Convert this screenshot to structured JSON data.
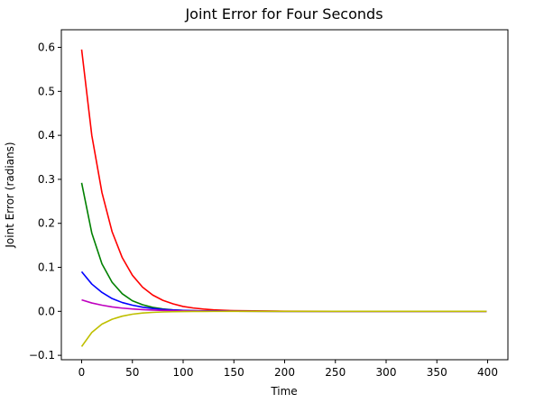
{
  "chart_data": {
    "type": "line",
    "title": "Joint Error for Four Seconds",
    "xlabel": "Time",
    "ylabel": "Joint Error (radians)",
    "xlim": [
      -20,
      420
    ],
    "ylim": [
      -0.11,
      0.64
    ],
    "xticks": [
      0,
      50,
      100,
      150,
      200,
      250,
      300,
      350,
      400
    ],
    "yticks": [
      -0.1,
      0.0,
      0.1,
      0.2,
      0.3,
      0.4,
      0.5,
      0.6
    ],
    "ytick_labels": [
      "−0.1",
      "0.0",
      "0.1",
      "0.2",
      "0.3",
      "0.4",
      "0.5",
      "0.6"
    ],
    "grid": false,
    "legend": false,
    "x": [
      0,
      10,
      20,
      30,
      40,
      50,
      60,
      70,
      80,
      90,
      100,
      110,
      120,
      130,
      140,
      150,
      200,
      250,
      300,
      350,
      399
    ],
    "series": [
      {
        "color": "#ff0000",
        "values": [
          0.595,
          0.4,
          0.27,
          0.181,
          0.122,
          0.082,
          0.055,
          0.037,
          0.025,
          0.017,
          0.011,
          0.0076,
          0.0051,
          0.0034,
          0.0023,
          0.0016,
          0.0002,
          0.0,
          0.0,
          0.0,
          0.0
        ]
      },
      {
        "color": "#008000",
        "values": [
          0.292,
          0.178,
          0.108,
          0.066,
          0.04,
          0.024,
          0.015,
          0.009,
          0.0055,
          0.0034,
          0.002,
          0.0012,
          0.0008,
          0.0005,
          0.0003,
          0.0002,
          0.0,
          0.0,
          0.0,
          0.0,
          0.0
        ]
      },
      {
        "color": "#0000ff",
        "values": [
          0.09,
          0.062,
          0.043,
          0.029,
          0.02,
          0.014,
          0.0095,
          0.0065,
          0.0045,
          0.0031,
          0.0021,
          0.0015,
          0.001,
          0.0007,
          0.0005,
          0.0003,
          0.0,
          0.0,
          0.0,
          0.0,
          0.0
        ]
      },
      {
        "color": "#bf00bf",
        "values": [
          0.026,
          0.019,
          0.014,
          0.01,
          0.0073,
          0.0053,
          0.0039,
          0.0028,
          0.002,
          0.0015,
          0.0011,
          0.0008,
          0.0006,
          0.0004,
          0.0003,
          0.0002,
          0.0,
          0.0,
          0.0,
          0.0,
          0.0
        ]
      },
      {
        "color": "#bfbf00",
        "values": [
          -0.08,
          -0.048,
          -0.029,
          -0.018,
          -0.011,
          -0.0065,
          -0.0039,
          -0.0024,
          -0.0014,
          -0.0009,
          -0.0005,
          -0.0003,
          -0.0002,
          -0.0001,
          -0.0001,
          0.0,
          0.0,
          0.0,
          0.0,
          0.0,
          0.0
        ]
      }
    ]
  }
}
